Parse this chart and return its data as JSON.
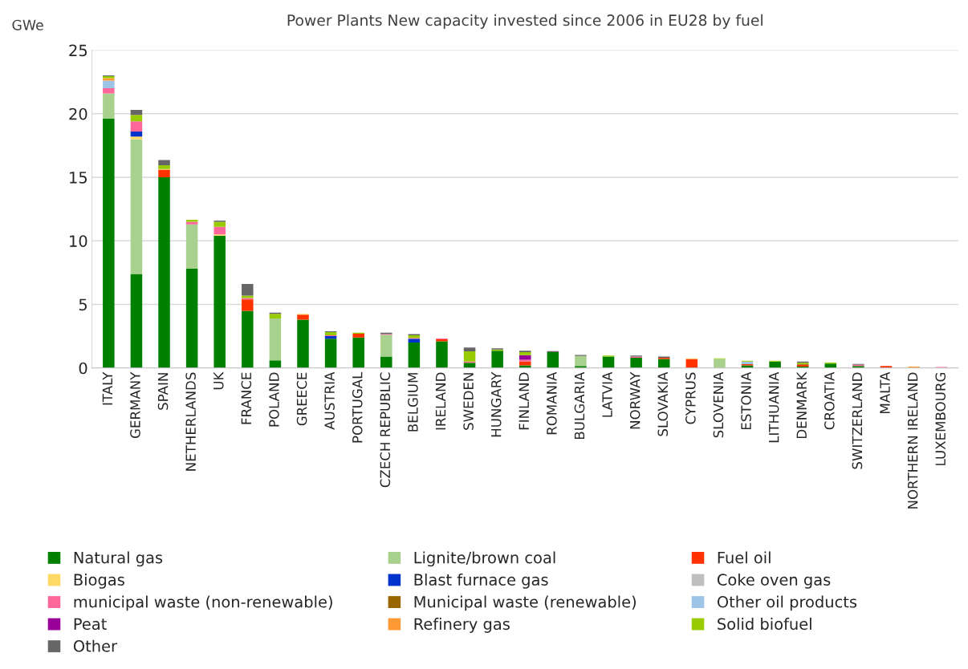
{
  "chart_data": {
    "type": "bar",
    "stacked": true,
    "title": "Power Plants New capacity invested since 2006 in EU28 by fuel",
    "ylabel": "GWe",
    "categories": [
      "ITALY",
      "GERMANY",
      "SPAIN",
      "NETHERLANDS",
      "UK",
      "FRANCE",
      "POLAND",
      "GREECE",
      "AUSTRIA",
      "PORTUGAL",
      "CZECH REPUBLIC",
      "BELGIUM",
      "IRELAND",
      "SWEDEN",
      "HUNGARY",
      "FINLAND",
      "ROMANIA",
      "BULGARIA",
      "LATVIA",
      "NORWAY",
      "SLOVAKIA",
      "CYPRUS",
      "SLOVENIA",
      "ESTONIA",
      "LITHUANIA",
      "DENMARK",
      "CROATIA",
      "SWITZERLAND",
      "MALTA",
      "NORTHERN IRELAND",
      "LUXEMBOURG"
    ],
    "series": [
      {
        "name": "Natural gas",
        "color": "#008000",
        "values": [
          19.6,
          7.4,
          15.0,
          7.8,
          10.4,
          4.5,
          0.6,
          3.8,
          2.3,
          2.4,
          0.9,
          2.0,
          2.1,
          0.4,
          1.35,
          0.2,
          1.25,
          0.15,
          0.9,
          0.8,
          0.7,
          0,
          0,
          0.2,
          0.5,
          0.1,
          0.35,
          0.15,
          0,
          0,
          0
        ]
      },
      {
        "name": "Lignite/brown coal",
        "color": "#a9d18e",
        "values": [
          2.0,
          10.6,
          0,
          3.5,
          0,
          0,
          3.3,
          0,
          0,
          0,
          1.7,
          0,
          0,
          0,
          0,
          0,
          0,
          0.8,
          0,
          0,
          0,
          0,
          0.7,
          0,
          0,
          0,
          0,
          0,
          0,
          0,
          0
        ]
      },
      {
        "name": "Fuel oil",
        "color": "#ff3300",
        "values": [
          0,
          0,
          0.6,
          0,
          0,
          0.9,
          0,
          0.4,
          0,
          0.3,
          0,
          0,
          0.15,
          0,
          0,
          0.3,
          0,
          0,
          0,
          0,
          0.1,
          0.7,
          0,
          0.1,
          0,
          0.15,
          0,
          0,
          0.15,
          0,
          0
        ]
      },
      {
        "name": "Biogas",
        "color": "#ffd966",
        "values": [
          0,
          0.2,
          0.05,
          0,
          0.1,
          0,
          0,
          0.05,
          0,
          0,
          0,
          0,
          0,
          0,
          0,
          0,
          0,
          0,
          0,
          0,
          0,
          0.05,
          0,
          0,
          0,
          0,
          0,
          0,
          null,
          0,
          0
        ]
      },
      {
        "name": "Blast furnace gas",
        "color": "#0033cc",
        "values": [
          0,
          0.4,
          0,
          0,
          0,
          0,
          0,
          0,
          0.2,
          0,
          0,
          0.3,
          0,
          0,
          0,
          0,
          0,
          0,
          0,
          0,
          0,
          0,
          0,
          0,
          0,
          0,
          0,
          0,
          0,
          0,
          0
        ]
      },
      {
        "name": "Coke oven gas",
        "color": "#bfbfbf",
        "values": [
          0,
          0,
          0,
          0,
          0,
          0,
          0,
          0,
          0,
          0,
          0,
          0,
          0,
          0,
          0,
          0,
          0,
          0,
          0,
          0,
          0,
          0,
          0,
          0,
          0,
          0,
          0,
          0,
          0,
          0,
          0
        ]
      },
      {
        "name": "municipal waste (non-renewable)",
        "color": "#ff6699",
        "values": [
          0.4,
          0.8,
          0,
          0.2,
          0.6,
          0.1,
          0,
          0,
          0.07,
          0,
          0.07,
          0.07,
          0.07,
          0.1,
          0,
          0.15,
          0,
          0,
          0,
          0.1,
          0,
          0,
          0,
          0,
          0,
          0,
          0,
          0.1,
          0,
          0,
          0.08
        ]
      },
      {
        "name": "Municipal waste (renewable)",
        "color": "#996600",
        "values": [
          0,
          0,
          0,
          0,
          0,
          0,
          0,
          0,
          0,
          0,
          0,
          0,
          0,
          0,
          0,
          0,
          0,
          0,
          0,
          0,
          0,
          0,
          0,
          0,
          0,
          0.05,
          0,
          0,
          0,
          0,
          0
        ]
      },
      {
        "name": "Other oil products",
        "color": "#9dc3e6",
        "values": [
          0.6,
          0,
          0,
          0,
          0,
          0,
          0,
          0,
          0,
          0,
          0,
          0,
          0,
          0,
          0,
          0,
          0,
          0,
          0,
          0,
          0,
          0,
          0,
          0.2,
          0,
          0,
          0,
          0,
          0,
          0,
          0
        ]
      },
      {
        "name": "Peat",
        "color": "#990099",
        "values": [
          0,
          0,
          0,
          0,
          0,
          0,
          0,
          0,
          0,
          0,
          0,
          0,
          0,
          0,
          0,
          0.35,
          0,
          0,
          0,
          0,
          0,
          0,
          0,
          0,
          0,
          0,
          0,
          0,
          0,
          0,
          0
        ]
      },
      {
        "name": "Refinery gas",
        "color": "#ff9933",
        "values": [
          0.2,
          0,
          0,
          0,
          0,
          0,
          0,
          0,
          0,
          0,
          0,
          0,
          0,
          0,
          0,
          0,
          0,
          0,
          0,
          0,
          0,
          0,
          0,
          0,
          0,
          0,
          0,
          0,
          0,
          0.1,
          0
        ]
      },
      {
        "name": "Solid biofuel",
        "color": "#99cc00",
        "values": [
          0.15,
          0.5,
          0.3,
          0.15,
          0.4,
          0.2,
          0.35,
          0,
          0.25,
          0.07,
          0,
          0.2,
          0,
          0.8,
          0.1,
          0.25,
          0,
          0,
          0.07,
          0,
          0,
          0,
          0.05,
          0.07,
          0.07,
          0.1,
          0.07,
          0,
          0,
          0,
          0
        ]
      },
      {
        "name": "Other",
        "color": "#666666",
        "values": [
          0.07,
          0.4,
          0.4,
          0,
          0.1,
          0.9,
          0.1,
          0,
          0.07,
          0,
          0.1,
          0.1,
          0,
          0.3,
          0.1,
          0.1,
          0.07,
          0.07,
          0,
          0.07,
          0.1,
          0,
          0,
          0,
          0,
          0.1,
          0,
          0.07,
          0,
          0,
          0
        ]
      }
    ],
    "ylim": [
      0,
      25
    ],
    "yticks": [
      0,
      5,
      10,
      15,
      20,
      25
    ],
    "grid": "y",
    "legend": "bottom"
  }
}
